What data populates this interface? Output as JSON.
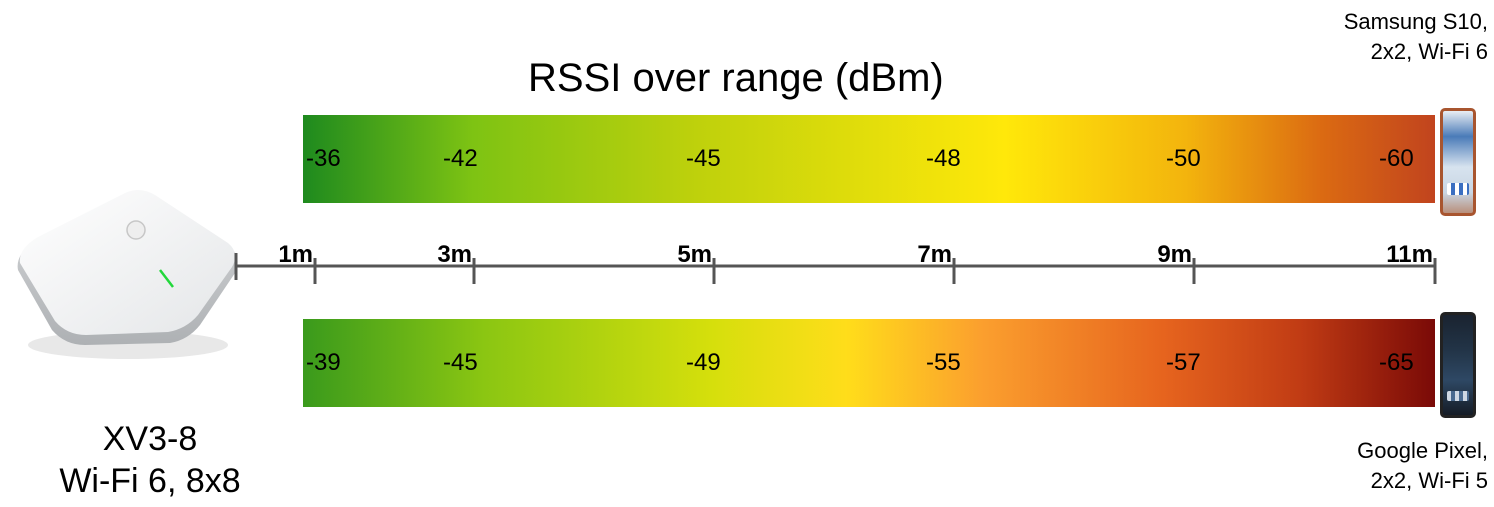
{
  "title": "RSSI over range (dBm)",
  "devices": {
    "top": {
      "line1": "Samsung S10,",
      "line2": "2x2, Wi-Fi 6",
      "icon": "smartphone-icon"
    },
    "bottom": {
      "line1": "Google Pixel,",
      "line2": "2x2, Wi-Fi 5",
      "icon": "smartphone-icon"
    }
  },
  "access_point": {
    "line1": "XV3-8",
    "line2": "Wi-Fi 6, 8x8",
    "icon": "access-point-icon"
  },
  "distances": [
    "1m",
    "3m",
    "5m",
    "7m",
    "9m",
    "11m"
  ],
  "rssi": {
    "top": [
      "-36",
      "-42",
      "-45",
      "-48",
      "-50",
      "-60"
    ],
    "bottom": [
      "-39",
      "-45",
      "-49",
      "-55",
      "-57",
      "-65"
    ]
  },
  "colors": {
    "strong": "#1e8a1e",
    "medium": "#ffe80a",
    "weak": "#7a0a07",
    "axis": "#555555"
  }
}
